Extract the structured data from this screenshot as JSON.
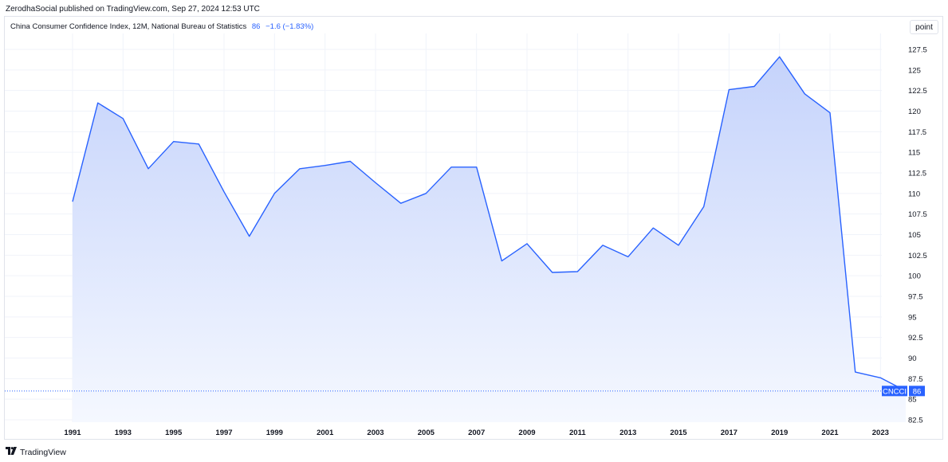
{
  "header": {
    "published_line": "ZerodhaSocial published on TradingView.com, Sep 27, 2024 12:53 UTC"
  },
  "legend": {
    "title": "China Consumer Confidence Index, 12M, National Bureau of Statistics",
    "last_value": "86",
    "change": "−1.6 (−1.83%)"
  },
  "controls": {
    "scale_mode_label": "point"
  },
  "price_tag": {
    "symbol": "CNCCI",
    "value": "86"
  },
  "footer": {
    "brand": "TradingView"
  },
  "colors": {
    "line": "#2962ff",
    "area_top": "#c5d3fb",
    "area_bottom": "#f5f8ff",
    "grid": "#f0f3fa",
    "text": "#131722"
  },
  "chart_data": {
    "type": "area",
    "grid": true,
    "x": [
      1991,
      1992,
      1993,
      1994,
      1995,
      1996,
      1997,
      1998,
      1999,
      2000,
      2001,
      2002,
      2003,
      2004,
      2005,
      2006,
      2007,
      2008,
      2009,
      2010,
      2011,
      2012,
      2013,
      2014,
      2015,
      2016,
      2017,
      2018,
      2019,
      2020,
      2021,
      2022,
      2023,
      2024
    ],
    "series": [
      {
        "values": [
          109.0,
          121.0,
          119.1,
          113.0,
          116.3,
          116.0,
          110.2,
          104.8,
          110.0,
          113.0,
          113.4,
          113.9,
          111.3,
          108.8,
          110.0,
          113.2,
          113.2,
          101.8,
          103.9,
          100.4,
          100.5,
          103.7,
          102.3,
          105.8,
          103.7,
          108.4,
          122.6,
          123.0,
          126.6,
          122.1,
          119.8,
          88.3,
          87.6,
          86.0
        ]
      }
    ],
    "x_tick_labels": [
      "1991",
      "1993",
      "1995",
      "1997",
      "1999",
      "2001",
      "2003",
      "2005",
      "2007",
      "2009",
      "2011",
      "2013",
      "2015",
      "2017",
      "2019",
      "2021",
      "2023"
    ],
    "y_tick_labels": [
      "82.5",
      "85",
      "87.5",
      "90",
      "92.5",
      "95",
      "97.5",
      "100",
      "102.5",
      "105",
      "107.5",
      "110",
      "112.5",
      "115",
      "117.5",
      "120",
      "122.5",
      "125",
      "127.5"
    ],
    "y_ticks": [
      82.5,
      85,
      87.5,
      90,
      92.5,
      95,
      97.5,
      100,
      102.5,
      105,
      107.5,
      110,
      112.5,
      115,
      117.5,
      120,
      122.5,
      125,
      127.5
    ],
    "x_ticks": [
      1991,
      1993,
      1995,
      1997,
      1999,
      2001,
      2003,
      2005,
      2007,
      2009,
      2011,
      2013,
      2015,
      2017,
      2019,
      2021,
      2023
    ],
    "xlim": [
      1991,
      2024
    ],
    "ylim": [
      82.5,
      127.5
    ],
    "last_value_line": 86
  }
}
